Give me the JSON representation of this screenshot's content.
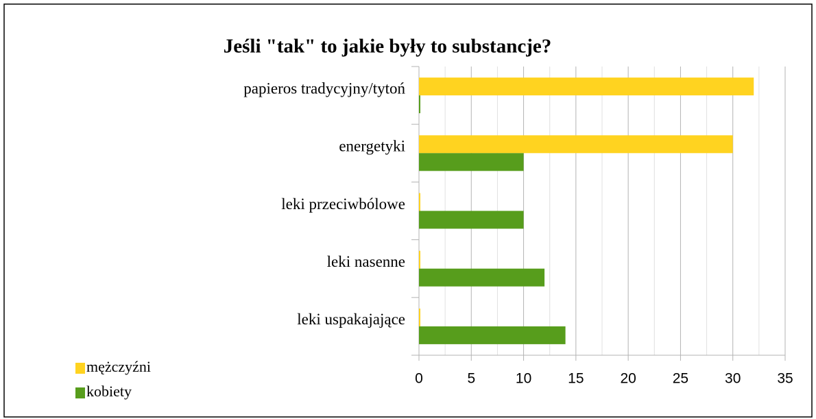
{
  "chart_data": {
    "type": "hbar",
    "title": "Jeśli \"tak\" to jakie były to substancje?",
    "categories": [
      "papieros tradycyjny/tytoń",
      "energetyki",
      "leki przeciwbólowe",
      "leki nasenne",
      "leki uspakajające"
    ],
    "series": [
      {
        "name": "mężczyźni",
        "color": "#ffd320",
        "values": [
          32,
          30,
          0,
          0,
          0
        ]
      },
      {
        "name": "kobiety",
        "color": "#579d1c",
        "values": [
          0,
          10,
          10,
          12,
          14
        ]
      }
    ],
    "xlim": [
      0,
      35
    ],
    "xticks": [
      0,
      5,
      10,
      15,
      20,
      25,
      30,
      35
    ],
    "grid": true,
    "minor_grid": true,
    "legend": "bottom-left"
  }
}
